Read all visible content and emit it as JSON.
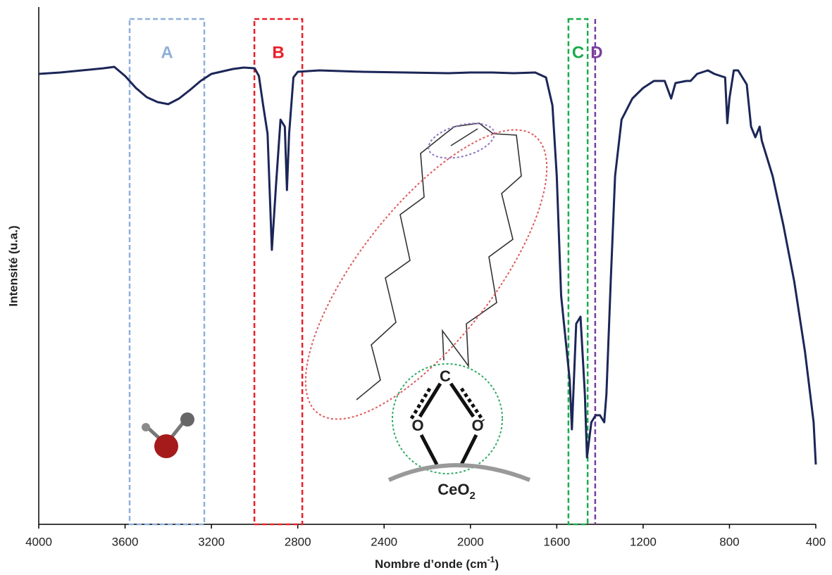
{
  "chart_data": {
    "type": "line",
    "x_label": {
      "text": "Nombre d’onde (cm",
      "sup": "-1",
      "end": ")"
    },
    "y_label": "Intensité (u.a.)",
    "color": "#1c2657",
    "x": [
      4000,
      3900,
      3800,
      3700,
      3650,
      3600,
      3550,
      3500,
      3450,
      3400,
      3350,
      3300,
      3250,
      3200,
      3100,
      3050,
      3000,
      2980,
      2960,
      2940,
      2920,
      2900,
      2880,
      2860,
      2850,
      2840,
      2820,
      2800,
      2700,
      2500,
      2300,
      2100,
      2000,
      1900,
      1800,
      1700,
      1650,
      1620,
      1600,
      1580,
      1560,
      1540,
      1530,
      1510,
      1490,
      1470,
      1460,
      1440,
      1420,
      1400,
      1380,
      1370,
      1350,
      1330,
      1300,
      1250,
      1200,
      1150,
      1100,
      1070,
      1050,
      1000,
      980,
      950,
      900,
      870,
      820,
      810,
      800,
      780,
      760,
      720,
      700,
      680,
      660,
      650,
      600,
      550,
      500,
      450,
      410,
      400
    ],
    "values": [
      640,
      642,
      645,
      648,
      650,
      637,
      620,
      607,
      600,
      597,
      605,
      617,
      630,
      640,
      647,
      649,
      648,
      637,
      595,
      555,
      390,
      485,
      575,
      565,
      475,
      555,
      635,
      643,
      645,
      643,
      642,
      641,
      642,
      642,
      641,
      642,
      635,
      595,
      495,
      325,
      265,
      205,
      135,
      285,
      295,
      185,
      95,
      145,
      155,
      155,
      145,
      185,
      345,
      495,
      575,
      605,
      620,
      630,
      630,
      605,
      627,
      630,
      630,
      640,
      645,
      640,
      635,
      570,
      605,
      645,
      645,
      625,
      565,
      550,
      565,
      545,
      495,
      425,
      345,
      245,
      145,
      85
    ],
    "xlim": [
      4000,
      400
    ],
    "xticks": [
      4000,
      3600,
      3200,
      2800,
      2400,
      2000,
      1600,
      1200,
      800,
      400
    ],
    "ylim": [
      0,
      735
    ],
    "regions": [
      {
        "label": "A",
        "x": [
          3579,
          3233
        ],
        "color": "#8fb0d9"
      },
      {
        "label": "B",
        "x": [
          3001,
          2779
        ],
        "color": "#e8202a"
      },
      {
        "label": "C",
        "x": [
          1546,
          1457
        ],
        "color": "#1aab4b"
      },
      {
        "label": "D",
        "x": [
          1422
        ],
        "color": "#7a3e9d"
      }
    ],
    "inset": {
      "atoms": [
        "C",
        "O",
        "O"
      ],
      "substrate": {
        "text": "CeO",
        "sub": "2"
      }
    }
  }
}
